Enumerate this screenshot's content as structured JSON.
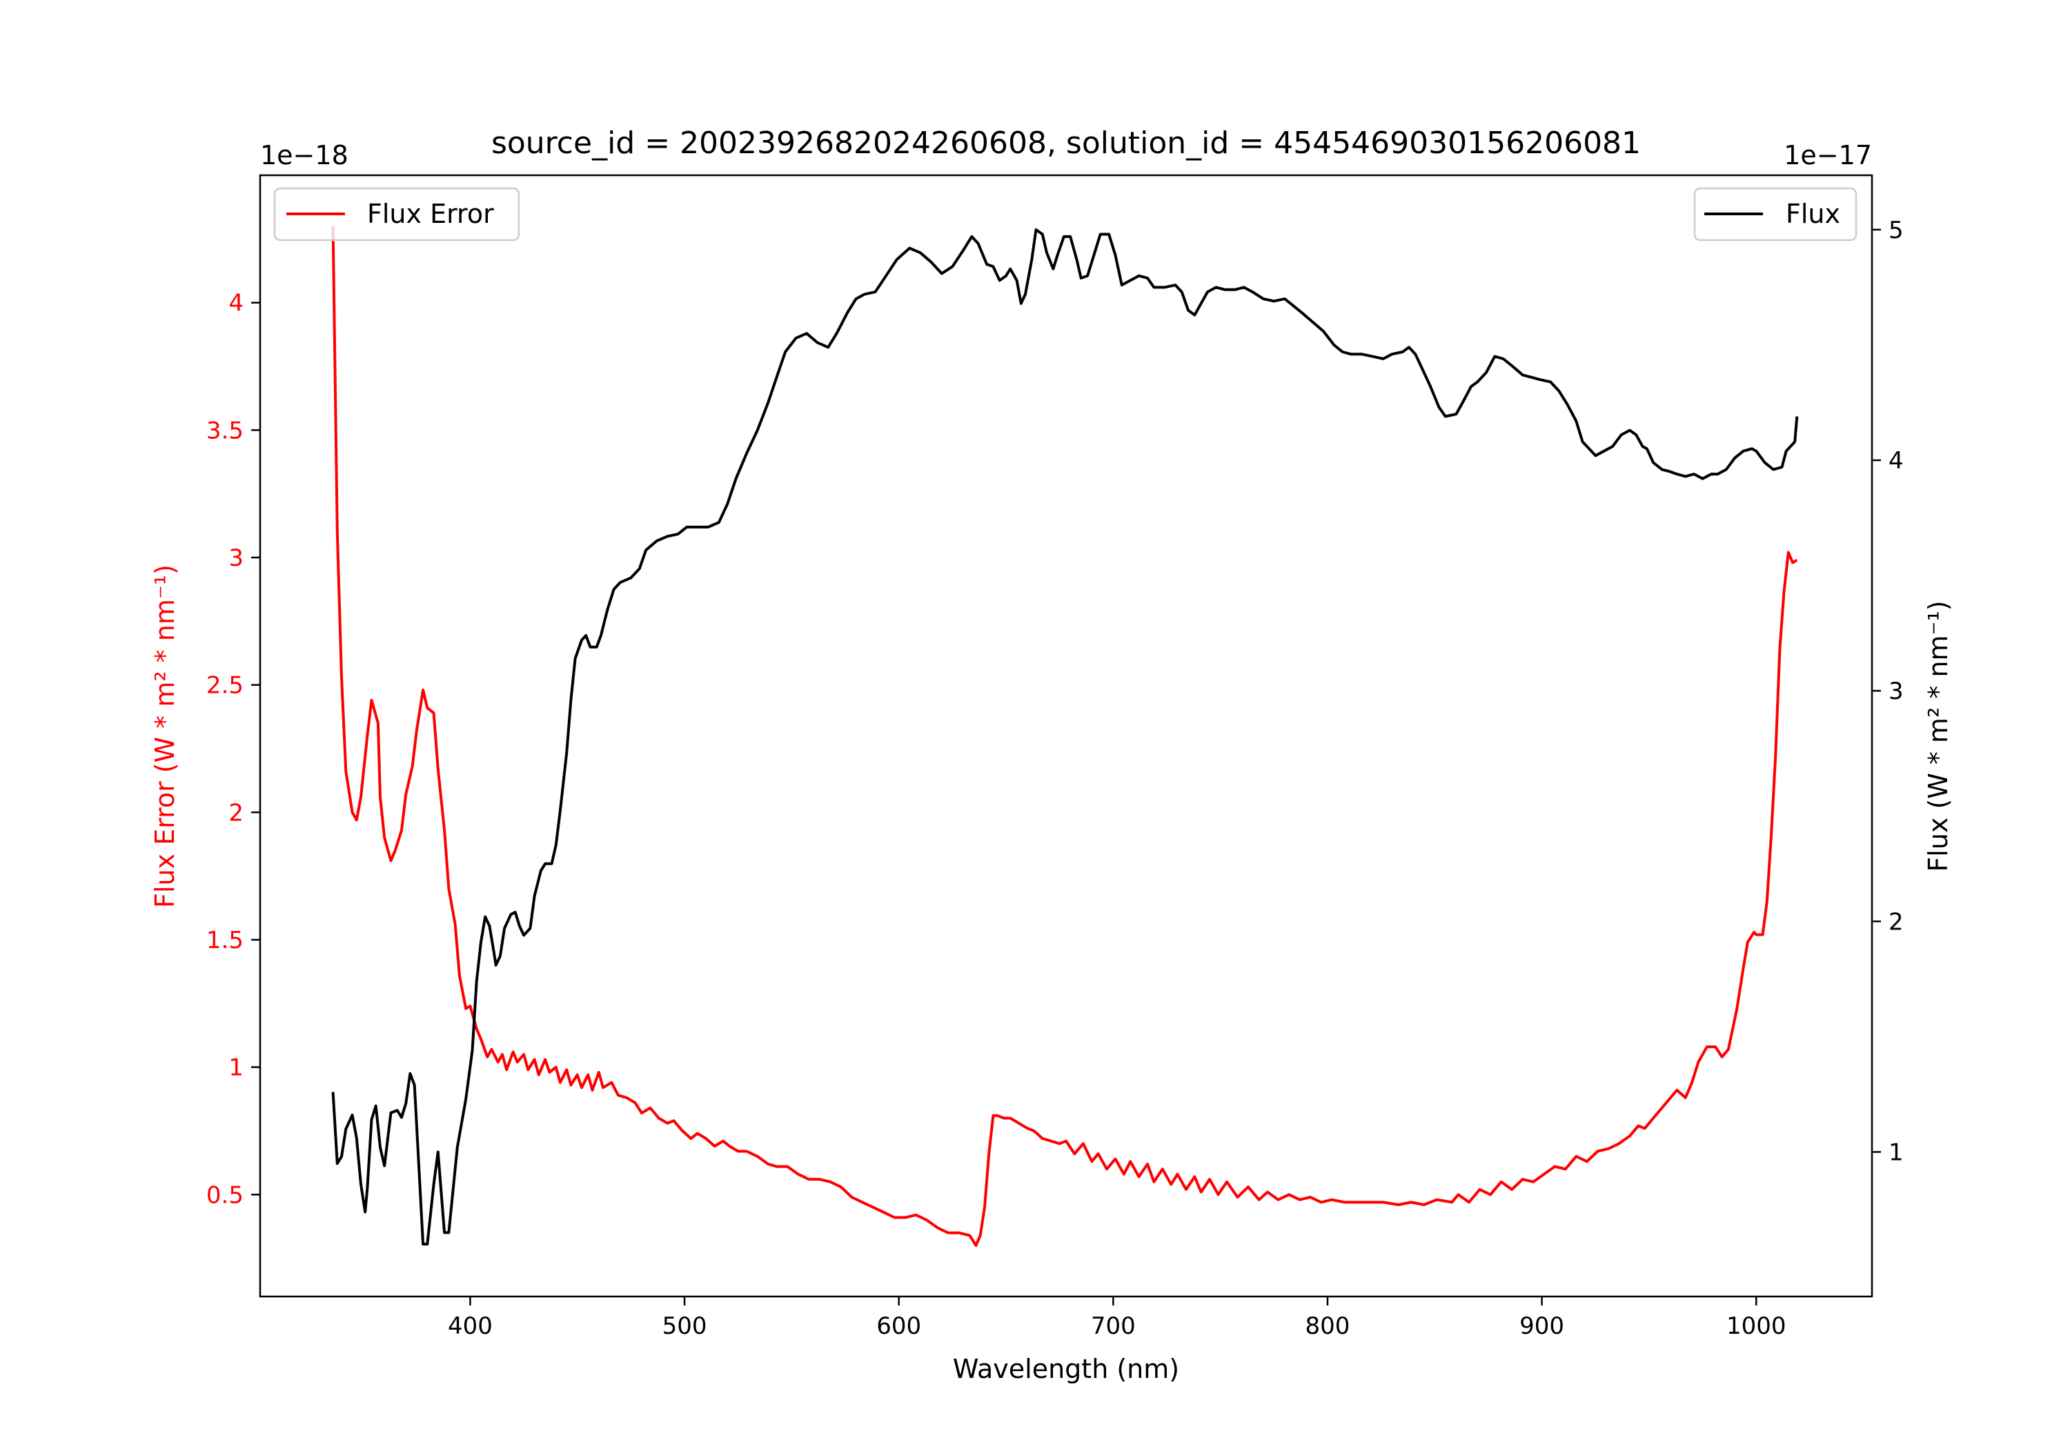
{
  "chart_data": {
    "type": "line",
    "title": "source_id = 2002392682024260608, solution_id = 4545469030156206081",
    "xlabel": "Wavelength (nm)",
    "xlim": [
      302,
      1054
    ],
    "xticks": [
      400,
      500,
      600,
      700,
      800,
      900,
      1000
    ],
    "grid": false,
    "left_axis": {
      "ylabel": "Flux Error (W * m² * nm⁻¹)",
      "offset_text": "1e−18",
      "ylim": [
        0.1,
        4.5
      ],
      "yticks": [
        0.5,
        1.0,
        1.5,
        2.0,
        2.5,
        3.0,
        3.5,
        4.0
      ],
      "color": "#ff0000"
    },
    "right_axis": {
      "ylabel": "Flux (W * m² * nm⁻¹)",
      "offset_text": "1e−17",
      "ylim": [
        0.373,
        5.236
      ],
      "yticks": [
        1,
        2,
        3,
        4,
        5
      ],
      "color": "#000000"
    },
    "series": [
      {
        "name": "Flux Error",
        "axis": "left",
        "color": "#ff0000",
        "legend": "top-left",
        "x": [
          336,
          338,
          340,
          342,
          345,
          347,
          349,
          352,
          354,
          357,
          358,
          360,
          363,
          365,
          368,
          370,
          373,
          375,
          378,
          380,
          383,
          385,
          388,
          390,
          393,
          395,
          398,
          400,
          403,
          405,
          408,
          410,
          413,
          415,
          417,
          420,
          422,
          425,
          427,
          430,
          432,
          435,
          437,
          440,
          442,
          445,
          447,
          450,
          452,
          455,
          457,
          460,
          462,
          466,
          469,
          473,
          477,
          480,
          484,
          488,
          492,
          495,
          499,
          503,
          506,
          510,
          514,
          518,
          521,
          525,
          529,
          534,
          539,
          543,
          548,
          553,
          558,
          563,
          568,
          573,
          578,
          583,
          588,
          593,
          598,
          603,
          608,
          613,
          618,
          623,
          628,
          633,
          636,
          638,
          640,
          642,
          644,
          646,
          649,
          652,
          656,
          660,
          663,
          667,
          671,
          675,
          678,
          682,
          686,
          690,
          693,
          697,
          701,
          705,
          708,
          712,
          716,
          719,
          723,
          727,
          730,
          734,
          738,
          741,
          745,
          749,
          753,
          758,
          763,
          768,
          772,
          777,
          782,
          787,
          792,
          797,
          802,
          808,
          814,
          820,
          826,
          833,
          839,
          845,
          851,
          858,
          861,
          866,
          871,
          876,
          881,
          886,
          891,
          896,
          901,
          906,
          911,
          916,
          921,
          926,
          931,
          936,
          941,
          945,
          948,
          952,
          956,
          960,
          963,
          967,
          970,
          973,
          977,
          981,
          984,
          987,
          991,
          994,
          996,
          999,
          1000,
          1003,
          1005,
          1007,
          1009,
          1011,
          1013,
          1015,
          1017,
          1019
        ],
        "y": [
          4.3,
          3.1,
          2.53,
          2.16,
          2.0,
          1.97,
          2.06,
          2.3,
          2.44,
          2.35,
          2.06,
          1.9,
          1.81,
          1.85,
          1.93,
          2.07,
          2.18,
          2.32,
          2.48,
          2.41,
          2.39,
          2.17,
          1.93,
          1.7,
          1.56,
          1.36,
          1.23,
          1.24,
          1.15,
          1.11,
          1.04,
          1.07,
          1.02,
          1.05,
          0.99,
          1.06,
          1.02,
          1.05,
          0.99,
          1.03,
          0.97,
          1.03,
          0.98,
          1.0,
          0.94,
          0.99,
          0.93,
          0.97,
          0.92,
          0.97,
          0.91,
          0.98,
          0.92,
          0.94,
          0.89,
          0.88,
          0.86,
          0.82,
          0.84,
          0.8,
          0.78,
          0.79,
          0.75,
          0.72,
          0.74,
          0.72,
          0.69,
          0.71,
          0.69,
          0.67,
          0.67,
          0.65,
          0.62,
          0.61,
          0.61,
          0.58,
          0.56,
          0.56,
          0.55,
          0.53,
          0.49,
          0.47,
          0.45,
          0.43,
          0.41,
          0.41,
          0.42,
          0.4,
          0.37,
          0.35,
          0.35,
          0.34,
          0.3,
          0.34,
          0.45,
          0.66,
          0.81,
          0.81,
          0.8,
          0.8,
          0.78,
          0.76,
          0.75,
          0.72,
          0.71,
          0.7,
          0.71,
          0.66,
          0.7,
          0.63,
          0.66,
          0.6,
          0.64,
          0.58,
          0.63,
          0.57,
          0.62,
          0.55,
          0.6,
          0.54,
          0.58,
          0.52,
          0.57,
          0.51,
          0.56,
          0.5,
          0.55,
          0.49,
          0.53,
          0.48,
          0.51,
          0.48,
          0.5,
          0.48,
          0.49,
          0.47,
          0.48,
          0.47,
          0.47,
          0.47,
          0.47,
          0.46,
          0.47,
          0.46,
          0.48,
          0.47,
          0.5,
          0.47,
          0.52,
          0.5,
          0.55,
          0.52,
          0.56,
          0.55,
          0.58,
          0.61,
          0.6,
          0.65,
          0.63,
          0.67,
          0.68,
          0.7,
          0.73,
          0.77,
          0.76,
          0.8,
          0.84,
          0.88,
          0.91,
          0.88,
          0.94,
          1.02,
          1.08,
          1.08,
          1.04,
          1.07,
          1.23,
          1.39,
          1.49,
          1.53,
          1.52,
          1.52,
          1.65,
          1.91,
          2.22,
          2.64,
          2.87,
          3.02,
          2.98,
          2.99
        ]
      },
      {
        "name": "Flux",
        "axis": "right",
        "color": "#000000",
        "legend": "top-right",
        "x": [
          336,
          338,
          340,
          342,
          345,
          347,
          349,
          351,
          352,
          354,
          356,
          358,
          360,
          363,
          366,
          368,
          370,
          372,
          374,
          378,
          380,
          383,
          385,
          388,
          390,
          394,
          398,
          401,
          403,
          405,
          407,
          409,
          411,
          412,
          414,
          416,
          419,
          421,
          423,
          425,
          428,
          430,
          433,
          435,
          438,
          440,
          442,
          445,
          447,
          449,
          452,
          454,
          456,
          459,
          461,
          464,
          467,
          470,
          475,
          479,
          482,
          487,
          492,
          497,
          501,
          506,
          511,
          516,
          520,
          524,
          529,
          534,
          539,
          543,
          547,
          552,
          557,
          562,
          567,
          571,
          576,
          580,
          584,
          589,
          594,
          599,
          605,
          610,
          615,
          620,
          625,
          630,
          634,
          637,
          641,
          644,
          647,
          650,
          652,
          655,
          657,
          659,
          662,
          664,
          667,
          669,
          672,
          674,
          677,
          680,
          683,
          685,
          688,
          691,
          694,
          698,
          701,
          704,
          708,
          712,
          716,
          719,
          724,
          729,
          732,
          735,
          738,
          741,
          744,
          748,
          752,
          757,
          761,
          765,
          770,
          775,
          780,
          784,
          788,
          793,
          798,
          803,
          807,
          811,
          816,
          821,
          826,
          830,
          835,
          838,
          841,
          845,
          848,
          852,
          855,
          860,
          863,
          867,
          870,
          874,
          878,
          882,
          886,
          891,
          895,
          899,
          904,
          908,
          912,
          916,
          919,
          922,
          925,
          929,
          933,
          937,
          941,
          944,
          947,
          949,
          952,
          956,
          960,
          963,
          967,
          971,
          975,
          979,
          982,
          986,
          990,
          994,
          998,
          1000,
          1004,
          1008,
          1012,
          1014,
          1018,
          1019
        ],
        "y": [
          1.26,
          0.95,
          0.98,
          1.1,
          1.16,
          1.06,
          0.86,
          0.74,
          0.84,
          1.14,
          1.2,
          1.02,
          0.94,
          1.17,
          1.18,
          1.15,
          1.21,
          1.34,
          1.29,
          0.6,
          0.6,
          0.86,
          1.0,
          0.65,
          0.65,
          1.02,
          1.23,
          1.44,
          1.74,
          1.91,
          2.02,
          1.98,
          1.87,
          1.81,
          1.85,
          1.97,
          2.03,
          2.04,
          1.98,
          1.94,
          1.97,
          2.11,
          2.22,
          2.25,
          2.25,
          2.33,
          2.48,
          2.73,
          2.96,
          3.14,
          3.22,
          3.24,
          3.19,
          3.19,
          3.24,
          3.35,
          3.44,
          3.47,
          3.49,
          3.53,
          3.61,
          3.65,
          3.67,
          3.68,
          3.71,
          3.71,
          3.71,
          3.73,
          3.81,
          3.92,
          4.03,
          4.13,
          4.25,
          4.36,
          4.47,
          4.53,
          4.55,
          4.51,
          4.49,
          4.55,
          4.64,
          4.7,
          4.72,
          4.73,
          4.8,
          4.87,
          4.92,
          4.9,
          4.86,
          4.81,
          4.84,
          4.91,
          4.97,
          4.94,
          4.85,
          4.84,
          4.78,
          4.8,
          4.83,
          4.78,
          4.68,
          4.72,
          4.87,
          5.0,
          4.98,
          4.9,
          4.83,
          4.89,
          4.97,
          4.97,
          4.87,
          4.79,
          4.8,
          4.89,
          4.98,
          4.98,
          4.89,
          4.76,
          4.78,
          4.8,
          4.79,
          4.75,
          4.75,
          4.76,
          4.73,
          4.65,
          4.63,
          4.68,
          4.73,
          4.75,
          4.74,
          4.74,
          4.75,
          4.73,
          4.7,
          4.69,
          4.7,
          4.67,
          4.64,
          4.6,
          4.56,
          4.5,
          4.47,
          4.46,
          4.46,
          4.45,
          4.44,
          4.46,
          4.47,
          4.49,
          4.46,
          4.38,
          4.32,
          4.23,
          4.19,
          4.2,
          4.25,
          4.32,
          4.34,
          4.38,
          4.45,
          4.44,
          4.41,
          4.37,
          4.36,
          4.35,
          4.34,
          4.3,
          4.24,
          4.17,
          4.08,
          4.05,
          4.02,
          4.04,
          4.06,
          4.11,
          4.13,
          4.11,
          4.06,
          4.05,
          3.99,
          3.96,
          3.95,
          3.94,
          3.93,
          3.94,
          3.92,
          3.94,
          3.94,
          3.96,
          4.01,
          4.04,
          4.05,
          4.04,
          3.99,
          3.96,
          3.97,
          4.04,
          4.08,
          4.19
        ]
      }
    ]
  }
}
